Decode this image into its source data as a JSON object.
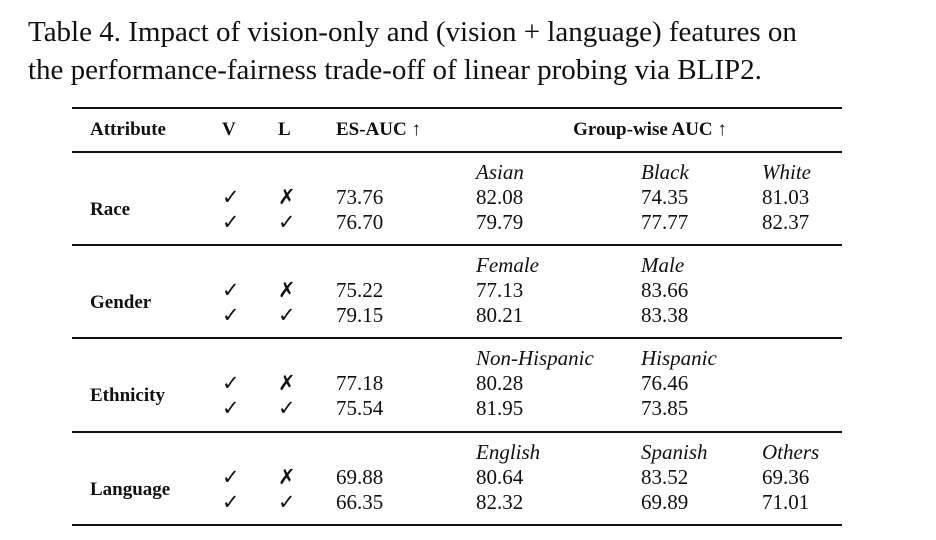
{
  "caption": {
    "lines": [
      "Table 4. Impact of vision-only and (vision + language) features on",
      "the performance-fairness trade-off of linear probing via BLIP2."
    ]
  },
  "table": {
    "header": [
      "Attribute",
      "V",
      "L",
      "ES-AUC ↑",
      "Group-wise AUC ↑"
    ],
    "groups": [
      {
        "attribute": "Race",
        "subgroups": [
          "Asian",
          "Black",
          "White"
        ],
        "rows": [
          {
            "v": "✓",
            "l": "✗",
            "es_auc": "73.76",
            "auc": [
              "82.08",
              "74.35",
              "81.03"
            ]
          },
          {
            "v": "✓",
            "l": "✓",
            "es_auc": "76.70",
            "auc": [
              "79.79",
              "77.77",
              "82.37"
            ]
          }
        ]
      },
      {
        "attribute": "Gender",
        "subgroups": [
          "Female",
          "Male"
        ],
        "rows": [
          {
            "v": "✓",
            "l": "✗",
            "es_auc": "75.22",
            "auc": [
              "77.13",
              "83.66"
            ]
          },
          {
            "v": "✓",
            "l": "✓",
            "es_auc": "79.15",
            "auc": [
              "80.21",
              "83.38"
            ]
          }
        ]
      },
      {
        "attribute": "Ethnicity",
        "subgroups": [
          "Non-Hispanic",
          "Hispanic"
        ],
        "rows": [
          {
            "v": "✓",
            "l": "✗",
            "es_auc": "77.18",
            "auc": [
              "80.28",
              "76.46"
            ]
          },
          {
            "v": "✓",
            "l": "✓",
            "es_auc": "75.54",
            "auc": [
              "81.95",
              "73.85"
            ]
          }
        ]
      },
      {
        "attribute": "Language",
        "subgroups": [
          "English",
          "Spanish",
          "Others"
        ],
        "rows": [
          {
            "v": "✓",
            "l": "✗",
            "es_auc": "69.88",
            "auc": [
              "80.64",
              "83.52",
              "69.36"
            ]
          },
          {
            "v": "✓",
            "l": "✓",
            "es_auc": "66.35",
            "auc": [
              "82.32",
              "69.89",
              "71.01"
            ]
          }
        ]
      }
    ]
  }
}
